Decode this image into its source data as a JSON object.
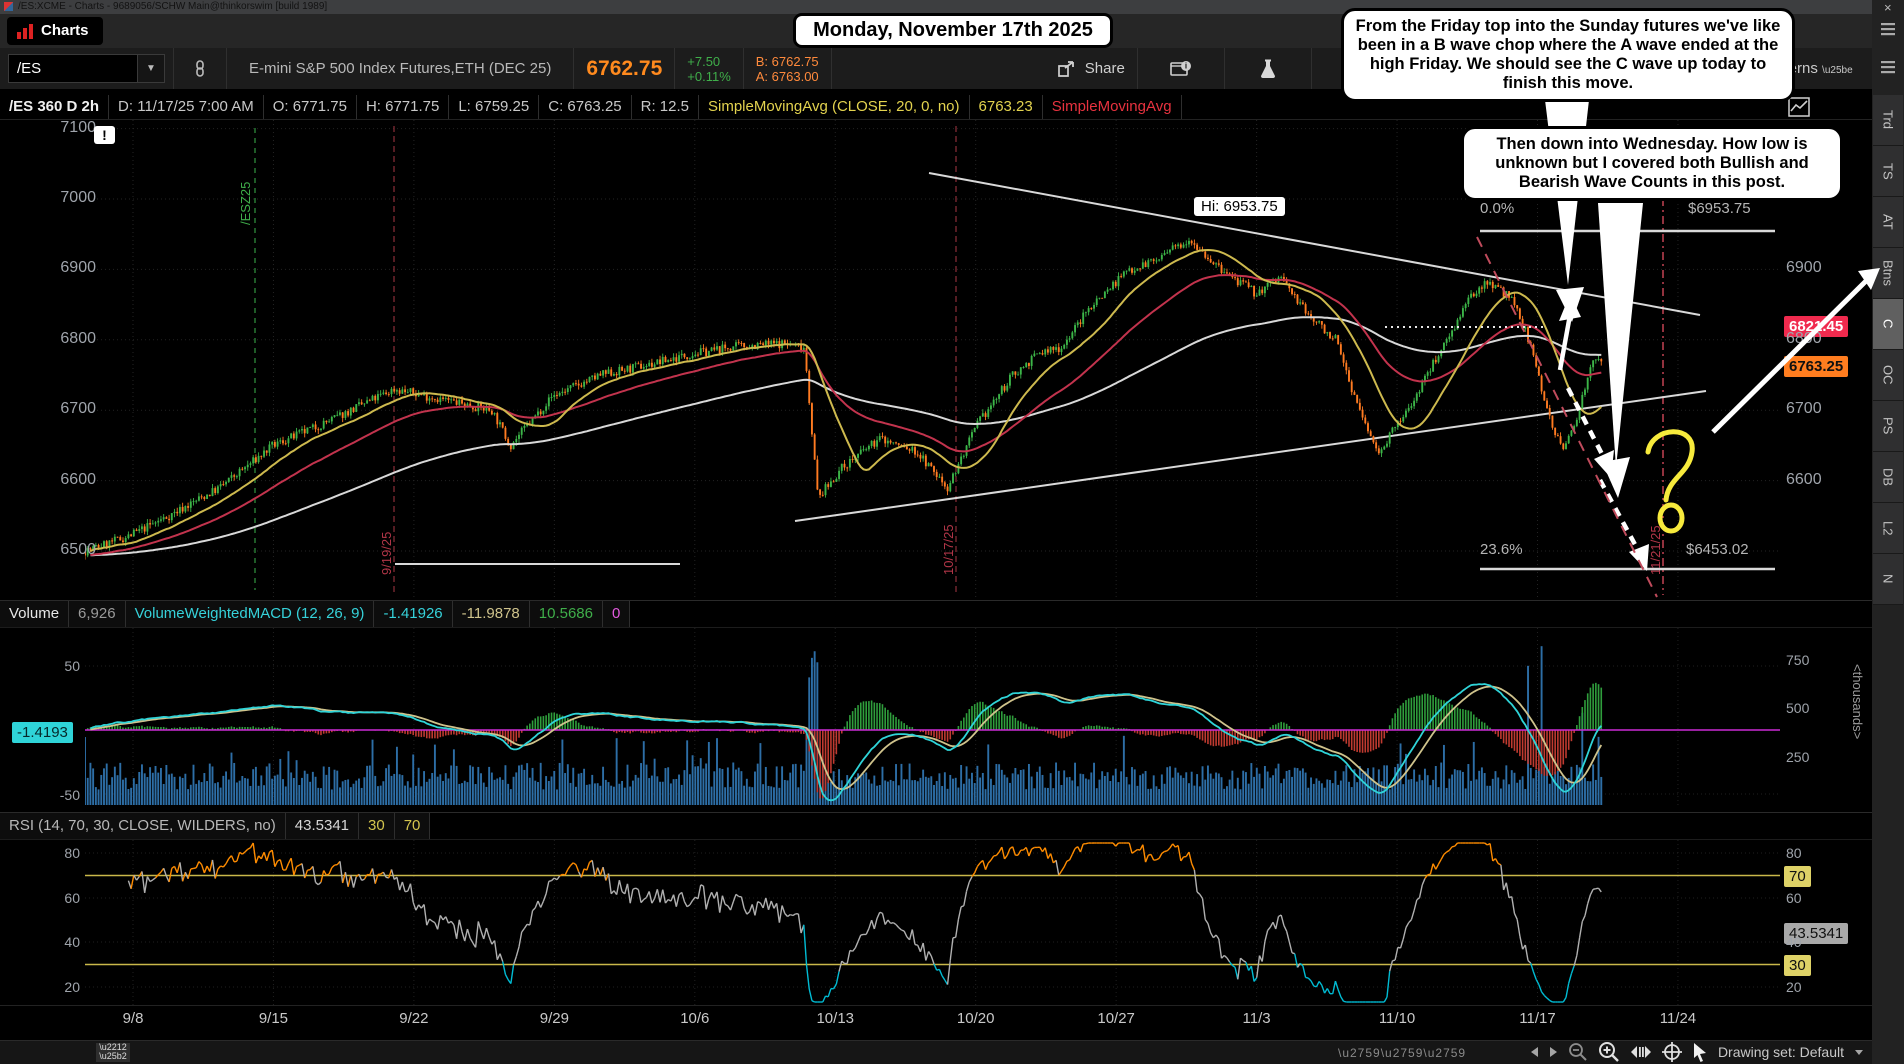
{
  "window": {
    "title": "/ES:XCME - Charts - 9689056/SCHW Main@thinkorswim [build 1989]",
    "close_glyph": "×"
  },
  "tabbar": {
    "tab": "Charts"
  },
  "header": {
    "symbol": "/ES",
    "caret": "▼",
    "description": "E-mini S&P 500 Index Futures,ETH (DEC 25)",
    "last": "6762.75",
    "change": "+7.50",
    "change_pct": "+0.11%",
    "bid_line": "B: 6762.75",
    "ask_line": "A: 6763.00",
    "share_label": "Share",
    "timeframe": "2h",
    "patterns": "Patterns"
  },
  "ohlc": {
    "cells": [
      {
        "text": "/ES 360 D 2h",
        "color": "#f0f0f0",
        "bold": true
      },
      {
        "text": "D: 11/17/25 7:00 AM",
        "color": "#c8c8c8"
      },
      {
        "text": "O: 6771.75",
        "color": "#c8c8c8"
      },
      {
        "text": "H: 6771.75",
        "color": "#c8c8c8"
      },
      {
        "text": "L: 6759.25",
        "color": "#c8c8c8"
      },
      {
        "text": "C: 6763.25",
        "color": "#c8c8c8"
      },
      {
        "text": "R: 12.5",
        "color": "#c8c8c8"
      },
      {
        "text": "SimpleMovingAvg (CLOSE, 20, 0, no)",
        "color": "#e3d34f"
      },
      {
        "text": "6763.23",
        "color": "#e3d34f"
      },
      {
        "text": "SimpleMovingAvg",
        "color": "#e8323f"
      }
    ]
  },
  "banner": {
    "text": "Monday, November 17th 2025"
  },
  "callouts": [
    {
      "text": "From the Friday top into the Sunday futures we've like been in a B wave chop where the A wave ended at the high Friday.  We should see the C wave up today to finish this move."
    },
    {
      "text": "Then down into Wednesday.  How low is unknown but I covered both Bullish and Bearish Wave Counts in this post."
    }
  ],
  "chart": {
    "warning_glyph": "!",
    "hi_label": "Hi: 6953.75",
    "left_ticks": [
      7100,
      7000,
      6900,
      6800,
      6700,
      6600,
      6500
    ],
    "right_ticks": [
      6900,
      6800,
      6700,
      6600
    ],
    "bubbles": {
      "prev": "6821.45",
      "last": "6763.25"
    },
    "bubble_colors": {
      "prev_bg": "#f02a4e",
      "prev_fg": "#ffffff",
      "last_bg": "#ff7d1f",
      "last_fg": "#101010"
    },
    "fib": {
      "top_pct": "0.0%",
      "top_val": "$6953.75",
      "bot_pct": "23.6%",
      "bot_val": "$6453.02"
    },
    "contract_label": "/ESZ25",
    "event_dates": [
      "9/19/25",
      "10/17/25",
      "11/21/25"
    ],
    "dates": [
      "9/8",
      "9/15",
      "9/22",
      "9/29",
      "10/6",
      "10/13",
      "10/20",
      "10/27",
      "11/3",
      "11/10",
      "11/17",
      "11/24"
    ]
  },
  "vol": {
    "cells": [
      {
        "text": "Volume",
        "color": "#e8e8e8"
      },
      {
        "text": "6,926",
        "color": "#9a9a9a"
      },
      {
        "text": "VolumeWeightedMACD (12, 26, 9)",
        "color": "#36d2da"
      },
      {
        "text": "-1.41926",
        "color": "#36d2da"
      },
      {
        "text": "-11.9878",
        "color": "#cfc38c"
      },
      {
        "text": "10.5686",
        "color": "#3fae4a"
      },
      {
        "text": "0",
        "color": "#e45ae0"
      }
    ],
    "left_ticks": [
      50,
      -50
    ],
    "right_ticks": [
      750,
      500,
      250
    ],
    "right_unit": "<thousands>",
    "bubble": "-1.4193",
    "bubble_bg": "#2fd4d8"
  },
  "rsi": {
    "cells": [
      {
        "text": "RSI (14, 70, 30, CLOSE, WILDERS, no)",
        "color": "#b8b8b8"
      },
      {
        "text": "43.5341",
        "color": "#d6d6d6"
      },
      {
        "text": "30",
        "color": "#d3c44e"
      },
      {
        "text": "70",
        "color": "#d3c44e"
      }
    ],
    "left_ticks": [
      80,
      60,
      40,
      20
    ],
    "right_ticks": [
      80,
      60,
      40,
      20
    ],
    "bubbles": {
      "high": "70",
      "value": "43.5341",
      "low": "30"
    },
    "bubble_colors": {
      "band_bg": "#ded267",
      "value_bg": "#a8a8a8"
    }
  },
  "statusbar": {
    "drawing_set": "Drawing set: Default"
  },
  "sidebar": {
    "selected": "C",
    "tabs": [
      {
        "label": "Trd"
      },
      {
        "label": "TS"
      },
      {
        "label": "AT"
      },
      {
        "label": "Btns"
      },
      {
        "label": "C"
      },
      {
        "label": "OC"
      },
      {
        "label": "PS"
      },
      {
        "label": "DB"
      },
      {
        "label": "L2"
      },
      {
        "label": "N"
      }
    ]
  },
  "chart_data": {
    "type": "candlestick",
    "symbol": "/ES",
    "period": "2h",
    "title": "E-mini S&P 500 Index Futures,ETH (DEC 25)",
    "seed": 7,
    "candle_count": 560,
    "price_axis": {
      "min": 6437,
      "max": 7110,
      "ticks": [
        6500,
        6600,
        6700,
        6800,
        6900,
        7000,
        7100
      ]
    },
    "x_dates": [
      "9/8",
      "9/15",
      "9/22",
      "9/29",
      "10/6",
      "10/13",
      "10/20",
      "10/27",
      "11/3",
      "11/10",
      "11/17",
      "11/24"
    ],
    "high": 6953.75,
    "last": 6763.25,
    "prev_settle": 6821.45,
    "fib_levels": [
      {
        "pct": 0.0,
        "price": 6953.75
      },
      {
        "pct": 23.6,
        "price": 6453.02
      }
    ],
    "price_anchors": [
      [
        0,
        6500
      ],
      [
        0.025,
        6520
      ],
      [
        0.05,
        6550
      ],
      [
        0.08,
        6590
      ],
      [
        0.112,
        6650
      ],
      [
        0.141,
        6680
      ],
      [
        0.184,
        6730
      ],
      [
        0.213,
        6715
      ],
      [
        0.242,
        6700
      ],
      [
        0.253,
        6650
      ],
      [
        0.278,
        6720
      ],
      [
        0.307,
        6750
      ],
      [
        0.336,
        6765
      ],
      [
        0.361,
        6780
      ],
      [
        0.386,
        6790
      ],
      [
        0.415,
        6795
      ],
      [
        0.428,
        6790
      ],
      [
        0.436,
        6575
      ],
      [
        0.451,
        6620
      ],
      [
        0.473,
        6660
      ],
      [
        0.495,
        6640
      ],
      [
        0.513,
        6590
      ],
      [
        0.531,
        6680
      ],
      [
        0.552,
        6750
      ],
      [
        0.567,
        6780
      ],
      [
        0.581,
        6790
      ],
      [
        0.599,
        6850
      ],
      [
        0.621,
        6900
      ],
      [
        0.639,
        6915
      ],
      [
        0.657,
        6945
      ],
      [
        0.675,
        6900
      ],
      [
        0.697,
        6865
      ],
      [
        0.711,
        6890
      ],
      [
        0.726,
        6840
      ],
      [
        0.744,
        6800
      ],
      [
        0.758,
        6700
      ],
      [
        0.769,
        6640
      ],
      [
        0.787,
        6700
      ],
      [
        0.805,
        6780
      ],
      [
        0.823,
        6855
      ],
      [
        0.834,
        6885
      ],
      [
        0.848,
        6860
      ],
      [
        0.859,
        6800
      ],
      [
        0.87,
        6700
      ],
      [
        0.879,
        6640
      ],
      [
        0.888,
        6695
      ],
      [
        0.897,
        6775
      ],
      [
        0.902,
        6763
      ]
    ],
    "indicators": {
      "sma20": {
        "label": "SimpleMovingAvg (CLOSE, 20, 0, no)",
        "value": 6763.23,
        "color": "#cdb94e"
      },
      "ema50": {
        "color": "#c2334d"
      },
      "ema150": {
        "color": "#d8d8d8"
      },
      "macd": {
        "label": "VolumeWeightedMACD (12, 26, 9)",
        "fast": 12,
        "slow": 26,
        "signal": 9,
        "value": -1.41926,
        "colors": {
          "macd": "#2fd4d8",
          "signal": "#cfc38c",
          "pos": "#2f9e3c",
          "neg": "#bf3a30",
          "zero": "#cc2bd6",
          "volume": "#2d6ea6"
        }
      },
      "rsi": {
        "label": "RSI (14, 70, 30, CLOSE, WILDERS, no)",
        "period": 14,
        "high": 70,
        "low": 30,
        "value": 43.5341,
        "colors": {
          "line": "#b0b0b0",
          "over": "#ff8c00",
          "under": "#00bcd4",
          "bands": "#c9b84a"
        }
      }
    }
  }
}
